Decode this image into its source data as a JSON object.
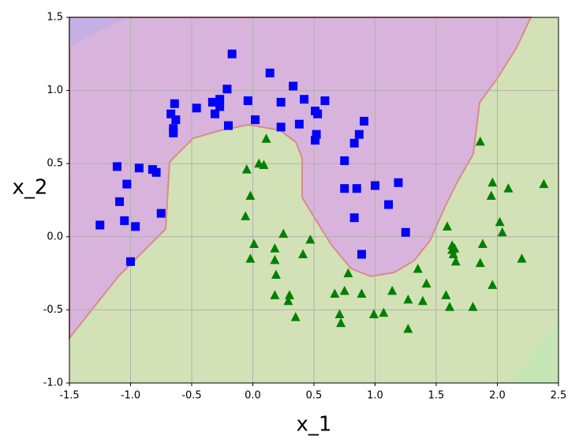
{
  "chart_data": {
    "type": "scatter",
    "x_label": "x_1",
    "y_label": "x_2",
    "xlim": [
      -1.5,
      2.5
    ],
    "ylim": [
      -1.0,
      1.5
    ],
    "xticks": [
      -1.5,
      {
        "value": -1.0,
        "label": "-1.0"
      },
      -0.5,
      {
        "value": 0,
        "label": "0.0"
      },
      0.5,
      {
        "value": 1.0,
        "label": "1.0"
      },
      1.5,
      {
        "value": 2.0,
        "label": "2.0"
      },
      2.5
    ],
    "yticks": [
      {
        "value": -1.0,
        "label": "-1.0"
      },
      -0.5,
      {
        "value": 0,
        "label": "0.0"
      },
      0.5,
      {
        "value": 1.0,
        "label": "1.0"
      },
      1.5
    ],
    "grid": true,
    "series": [
      {
        "color": "#0000ff",
        "marker": "square",
        "x": [
          -0.17,
          0.14,
          0.33,
          -0.21,
          -0.64,
          -0.46,
          -0.33,
          -0.27,
          -0.27,
          -0.31,
          -0.04,
          0.23,
          0.42,
          0.59,
          0.51,
          0.53,
          -0.67,
          -0.63,
          -0.65,
          -0.65,
          -0.2,
          0.02,
          0.23,
          0.38,
          0.52,
          0.51,
          0.91,
          0.87,
          0.83,
          0.75,
          0.75,
          0.85,
          1.0,
          1.19,
          1.11,
          0.83,
          1.25,
          0.89,
          -1.11,
          -0.93,
          -0.82,
          -0.79,
          -1.03,
          -1.09,
          -0.75,
          -1.05,
          -0.96,
          -1.25,
          -1.0
        ],
        "values": [
          1.25,
          1.12,
          1.03,
          1.01,
          0.91,
          0.88,
          0.92,
          0.94,
          0.89,
          0.84,
          0.93,
          0.92,
          0.94,
          0.93,
          0.86,
          0.84,
          0.84,
          0.8,
          0.74,
          0.71,
          0.76,
          0.8,
          0.75,
          0.77,
          0.7,
          0.66,
          0.79,
          0.7,
          0.64,
          0.52,
          0.33,
          0.33,
          0.35,
          0.37,
          0.22,
          0.13,
          0.03,
          -0.12,
          0.48,
          0.47,
          0.46,
          0.44,
          0.36,
          0.24,
          0.16,
          0.11,
          0.07,
          0.08,
          -0.17
        ]
      },
      {
        "color": "#008000",
        "marker": "triangle",
        "x": [
          0.11,
          -0.05,
          0.05,
          0.09,
          -0.02,
          -0.06,
          0.01,
          0.25,
          0.18,
          -0.02,
          0.18,
          0.41,
          0.47,
          0.19,
          0.18,
          0.3,
          0.29,
          0.35,
          0.67,
          0.75,
          0.78,
          0.89,
          0.71,
          0.72,
          0.99,
          1.07,
          1.14,
          1.27,
          1.35,
          1.42,
          1.39,
          1.27,
          1.59,
          1.58,
          1.61,
          1.63,
          1.63,
          1.65,
          1.64,
          1.66,
          1.8,
          1.86,
          1.88,
          1.86,
          1.96,
          1.95,
          2.09,
          2.02,
          2.04,
          1.96,
          2.2,
          2.38
        ],
        "values": [
          0.67,
          0.46,
          0.5,
          0.49,
          0.28,
          0.14,
          -0.05,
          0.02,
          -0.08,
          -0.15,
          -0.16,
          -0.12,
          -0.02,
          -0.26,
          -0.4,
          -0.4,
          -0.44,
          -0.55,
          -0.39,
          -0.37,
          -0.25,
          -0.39,
          -0.53,
          -0.59,
          -0.53,
          -0.52,
          -0.37,
          -0.43,
          -0.22,
          -0.32,
          -0.44,
          -0.63,
          0.07,
          -0.4,
          -0.48,
          -0.06,
          -0.09,
          -0.08,
          -0.12,
          -0.17,
          -0.48,
          -0.18,
          -0.05,
          0.65,
          0.37,
          0.28,
          0.33,
          0.1,
          0.03,
          -0.33,
          -0.15,
          0.36
        ]
      }
    ]
  }
}
